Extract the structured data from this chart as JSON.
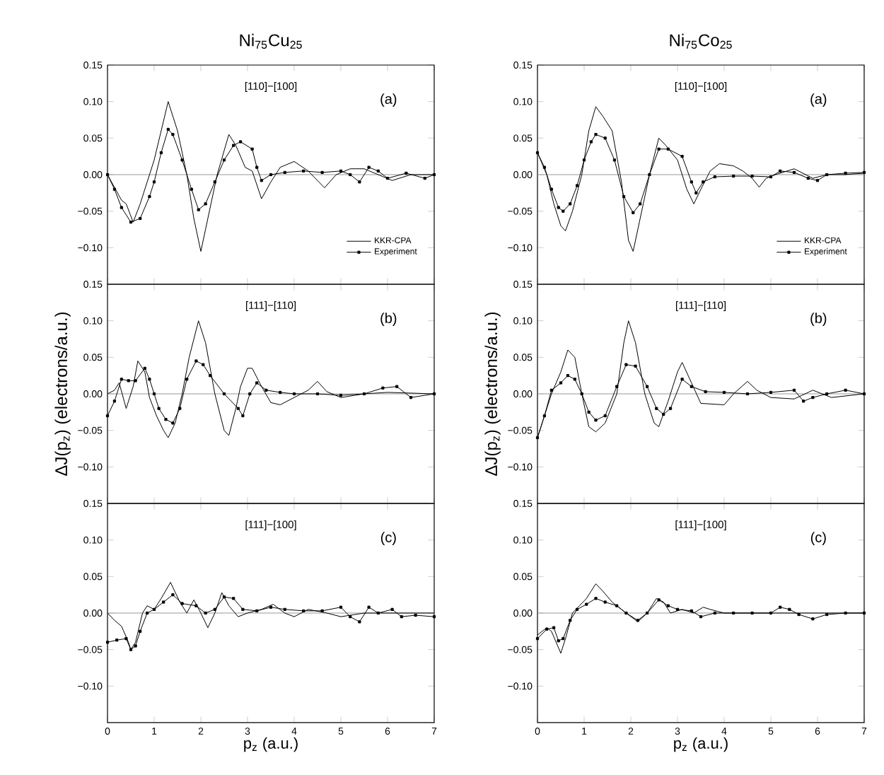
{
  "chart_data": [
    {
      "type": "line",
      "title": "Ni$_{75}$Cu$_{25}$",
      "annotations": [
        "[110]−[100]",
        "(a)"
      ],
      "xlim": [
        0,
        7
      ],
      "xticks": [
        0,
        1,
        2,
        3,
        4,
        5,
        6,
        7
      ],
      "ylim": [
        -0.15,
        0.15
      ],
      "yticks": [
        {
          "value": -0.1,
          "label": "−0.10"
        },
        {
          "value": -0.05,
          "label": "−0.05"
        },
        {
          "value": 0,
          "label": "0.00"
        },
        {
          "value": 0.05,
          "label": "0.05"
        },
        {
          "value": 0.1,
          "label": "0.10"
        },
        {
          "value": 0.15,
          "label": "0.15"
        }
      ],
      "tick_labels": "y",
      "legend": "bottom right",
      "line_style": "solid",
      "ref_lines": [
        {
          "axis": "y",
          "value": 0,
          "color": "#999999"
        }
      ],
      "series": [
        {
          "name": "KKR-CPA",
          "color": "#000000",
          "marker": "none",
          "x": [
            0,
            0.3,
            0.4,
            0.55,
            0.7,
            0.9,
            1.0,
            1.15,
            1.3,
            1.5,
            1.7,
            1.85,
            2.0,
            2.15,
            2.35,
            2.6,
            2.75,
            2.95,
            3.1,
            3.3,
            3.5,
            3.7,
            4.0,
            4.3,
            4.65,
            4.9,
            5.2,
            5.5,
            5.8,
            6.1,
            6.5,
            7.0
          ],
          "values": [
            0,
            -0.035,
            -0.04,
            -0.065,
            -0.04,
            0,
            0.02,
            0.06,
            0.1,
            0.06,
            0,
            -0.06,
            -0.105,
            -0.06,
            0,
            0.055,
            0.04,
            0.01,
            0.005,
            -0.033,
            -0.01,
            0.01,
            0.018,
            0.005,
            -0.018,
            0,
            0.008,
            0.008,
            0,
            -0.008,
            0,
            0
          ]
        },
        {
          "name": "Experiment",
          "color": "#000000",
          "marker": "square",
          "x": [
            0,
            0.15,
            0.3,
            0.5,
            0.7,
            0.9,
            1.0,
            1.15,
            1.3,
            1.4,
            1.6,
            1.8,
            1.95,
            2.1,
            2.3,
            2.5,
            2.7,
            2.85,
            3.1,
            3.2,
            3.3,
            3.5,
            3.8,
            4.2,
            4.6,
            5.0,
            5.2,
            5.4,
            5.6,
            5.8,
            6.0,
            6.4,
            6.8,
            7.0
          ],
          "values": [
            0,
            -0.02,
            -0.045,
            -0.065,
            -0.06,
            -0.03,
            -0.01,
            0.03,
            0.062,
            0.055,
            0.02,
            -0.02,
            -0.048,
            -0.04,
            -0.01,
            0.02,
            0.04,
            0.045,
            0.035,
            0.01,
            -0.008,
            0,
            0.003,
            0.005,
            0.003,
            0.005,
            0,
            -0.01,
            0.01,
            0.005,
            -0.005,
            0.002,
            -0.005,
            0
          ]
        }
      ]
    },
    {
      "type": "line",
      "ylabel": "ΔJ(p$_{z}$) (electrons/a.u.)",
      "annotations": [
        "[111]−[110]",
        "(b)"
      ],
      "xlim": [
        0,
        7
      ],
      "xticks": [
        0,
        1,
        2,
        3,
        4,
        5,
        6,
        7
      ],
      "ylim": [
        -0.15,
        0.15
      ],
      "yticks": [
        {
          "value": -0.1,
          "label": "−0.10"
        },
        {
          "value": -0.05,
          "label": "−0.05"
        },
        {
          "value": 0,
          "label": "0.00"
        },
        {
          "value": 0.05,
          "label": "0.05"
        },
        {
          "value": 0.1,
          "label": "0.10"
        },
        {
          "value": 0.15,
          "label": "0.15"
        }
      ],
      "tick_labels": "y",
      "line_style": "solid",
      "ref_lines": [
        {
          "axis": "y",
          "value": 0,
          "color": "#999999"
        }
      ],
      "series": [
        {
          "color": "#000000",
          "marker": "none",
          "x": [
            0,
            0.15,
            0.25,
            0.4,
            0.55,
            0.65,
            0.8,
            0.9,
            1.05,
            1.2,
            1.3,
            1.45,
            1.6,
            1.75,
            1.95,
            2.1,
            2.3,
            2.5,
            2.6,
            2.75,
            2.85,
            3.0,
            3.1,
            3.3,
            3.5,
            3.7,
            4.0,
            4.3,
            4.5,
            4.7,
            5.0,
            5.5,
            6.0,
            7.0
          ],
          "values": [
            0,
            0.005,
            0.015,
            -0.02,
            0.01,
            0.045,
            0.03,
            -0.005,
            -0.03,
            -0.05,
            -0.06,
            -0.04,
            0,
            0.05,
            0.1,
            0.07,
            0,
            -0.05,
            -0.057,
            -0.02,
            0.01,
            0.035,
            0.035,
            0.01,
            -0.012,
            -0.015,
            -0.005,
            0.005,
            0.017,
            0.003,
            -0.005,
            0,
            0.002,
            0
          ]
        },
        {
          "color": "#000000",
          "marker": "square",
          "x": [
            0,
            0.15,
            0.3,
            0.45,
            0.6,
            0.8,
            0.9,
            1.0,
            1.1,
            1.25,
            1.4,
            1.55,
            1.7,
            1.9,
            2.05,
            2.2,
            2.5,
            2.8,
            2.9,
            3.05,
            3.2,
            3.4,
            3.7,
            4.0,
            4.5,
            5.0,
            5.5,
            5.9,
            6.2,
            6.5,
            7.0
          ],
          "values": [
            -0.03,
            -0.01,
            0.02,
            0.018,
            0.018,
            0.035,
            0.02,
            0,
            -0.02,
            -0.035,
            -0.04,
            -0.02,
            0.02,
            0.045,
            0.04,
            0.025,
            0,
            -0.02,
            -0.03,
            0,
            0.015,
            0.005,
            0.002,
            0,
            0,
            -0.002,
            0,
            0.008,
            0.01,
            -0.005,
            0
          ]
        }
      ]
    },
    {
      "type": "line",
      "xlabel": "p$_{z}$ (a.u.)",
      "annotations": [
        "[111]−[100]",
        "(c)"
      ],
      "xlim": [
        0,
        7
      ],
      "xticks": [
        0,
        1,
        2,
        3,
        4,
        5,
        6,
        7
      ],
      "ylim": [
        -0.15,
        0.15
      ],
      "yticks": [
        {
          "value": -0.1,
          "label": "−0.10"
        },
        {
          "value": -0.05,
          "label": "−0.05"
        },
        {
          "value": 0,
          "label": "0.00"
        },
        {
          "value": 0.05,
          "label": "0.05"
        },
        {
          "value": 0.1,
          "label": "0.10"
        },
        {
          "value": 0.15,
          "label": "0.15"
        }
      ],
      "line_style": "solid",
      "ref_lines": [
        {
          "axis": "y",
          "value": 0,
          "color": "#999999"
        }
      ],
      "series": [
        {
          "color": "#000000",
          "marker": "none",
          "x": [
            0,
            0.15,
            0.3,
            0.45,
            0.5,
            0.6,
            0.75,
            0.85,
            1.0,
            1.15,
            1.35,
            1.55,
            1.7,
            1.85,
            2.0,
            2.15,
            2.3,
            2.45,
            2.6,
            2.8,
            3.0,
            3.3,
            3.55,
            3.8,
            4.0,
            4.3,
            4.7,
            5.0,
            5.5,
            6.0,
            7.0
          ],
          "values": [
            0,
            -0.01,
            -0.018,
            -0.04,
            -0.05,
            -0.04,
            0,
            0.01,
            0.005,
            0.02,
            0.042,
            0.015,
            0,
            0.018,
            0,
            -0.02,
            0,
            0.028,
            0.01,
            -0.005,
            0,
            0.005,
            0.012,
            0,
            -0.005,
            0.005,
            0,
            -0.005,
            0,
            0,
            0
          ]
        },
        {
          "color": "#000000",
          "marker": "square",
          "x": [
            0,
            0.2,
            0.4,
            0.5,
            0.6,
            0.7,
            0.85,
            1.0,
            1.2,
            1.4,
            1.6,
            1.9,
            2.1,
            2.3,
            2.5,
            2.7,
            2.9,
            3.2,
            3.5,
            3.8,
            4.2,
            4.6,
            5.0,
            5.2,
            5.4,
            5.6,
            5.8,
            6.1,
            6.3,
            6.6,
            7.0
          ],
          "values": [
            -0.04,
            -0.037,
            -0.035,
            -0.05,
            -0.045,
            -0.025,
            0,
            0.005,
            0.015,
            0.025,
            0.013,
            0.01,
            0,
            0.005,
            0.022,
            0.02,
            0.005,
            0.003,
            0.008,
            0.005,
            0.003,
            0.003,
            0.008,
            -0.005,
            -0.012,
            0.008,
            0,
            0.005,
            -0.005,
            -0.003,
            -0.005
          ]
        }
      ]
    },
    {
      "type": "line",
      "title": "Ni$_{75}$Co$_{25}$",
      "annotations": [
        "[110]−[100]",
        "(a)"
      ],
      "xlim": [
        0,
        7
      ],
      "xticks": [
        0,
        1,
        2,
        3,
        4,
        5,
        6,
        7
      ],
      "ylim": [
        -0.15,
        0.15
      ],
      "yticks": [
        {
          "value": -0.1,
          "label": "−0.10"
        },
        {
          "value": -0.05,
          "label": "−0.05"
        },
        {
          "value": 0,
          "label": "0.00"
        },
        {
          "value": 0.05,
          "label": "0.05"
        },
        {
          "value": 0.1,
          "label": "0.10"
        },
        {
          "value": 0.15,
          "label": "0.15"
        }
      ],
      "tick_labels": "y",
      "legend": "bottom right",
      "line_style": "solid",
      "ref_lines": [
        {
          "axis": "y",
          "value": 0,
          "color": "#999999"
        }
      ],
      "series": [
        {
          "name": "KKR-CPA",
          "color": "#000000",
          "marker": "none",
          "x": [
            0,
            0.2,
            0.35,
            0.5,
            0.6,
            0.75,
            0.95,
            1.1,
            1.25,
            1.4,
            1.6,
            1.8,
            1.95,
            2.05,
            2.2,
            2.4,
            2.6,
            2.75,
            3.0,
            3.2,
            3.35,
            3.5,
            3.7,
            3.9,
            4.2,
            4.4,
            4.6,
            4.75,
            4.9,
            5.1,
            5.5,
            5.9,
            6.2,
            6.6,
            7.0
          ],
          "values": [
            0.03,
            0,
            -0.04,
            -0.07,
            -0.077,
            -0.05,
            0,
            0.06,
            0.093,
            0.08,
            0.06,
            -0.01,
            -0.09,
            -0.105,
            -0.06,
            0,
            0.05,
            0.04,
            0.02,
            -0.02,
            -0.04,
            -0.02,
            0.005,
            0.015,
            0.012,
            0.005,
            -0.005,
            -0.017,
            -0.005,
            0,
            0.008,
            -0.005,
            0,
            0,
            0.002
          ]
        },
        {
          "name": "Experiment",
          "color": "#000000",
          "marker": "square",
          "x": [
            0,
            0.15,
            0.3,
            0.45,
            0.55,
            0.7,
            0.85,
            1.0,
            1.15,
            1.25,
            1.45,
            1.65,
            1.85,
            2.05,
            2.2,
            2.4,
            2.6,
            2.8,
            3.1,
            3.3,
            3.4,
            3.55,
            3.8,
            4.2,
            4.6,
            5.0,
            5.2,
            5.5,
            5.8,
            6.0,
            6.2,
            6.6,
            7.0
          ],
          "values": [
            0.03,
            0.01,
            -0.02,
            -0.045,
            -0.05,
            -0.04,
            -0.015,
            0.02,
            0.045,
            0.055,
            0.05,
            0.02,
            -0.03,
            -0.052,
            -0.04,
            0,
            0.035,
            0.035,
            0.025,
            -0.01,
            -0.025,
            -0.01,
            -0.003,
            -0.002,
            -0.002,
            -0.003,
            0.005,
            0.003,
            -0.005,
            -0.008,
            0,
            0.002,
            0.003
          ]
        }
      ]
    },
    {
      "type": "line",
      "ylabel": "ΔJ(p$_{z}$) (electrons/a.u.)",
      "annotations": [
        "[111]−[110]",
        "(b)"
      ],
      "xlim": [
        0,
        7
      ],
      "xticks": [
        0,
        1,
        2,
        3,
        4,
        5,
        6,
        7
      ],
      "ylim": [
        -0.15,
        0.15
      ],
      "yticks": [
        {
          "value": -0.1,
          "label": "−0.10"
        },
        {
          "value": -0.05,
          "label": "−0.05"
        },
        {
          "value": 0,
          "label": "0.00"
        },
        {
          "value": 0.05,
          "label": "0.05"
        },
        {
          "value": 0.1,
          "label": "0.10"
        },
        {
          "value": 0.15,
          "label": "0.15"
        }
      ],
      "tick_labels": "y",
      "line_style": "solid",
      "ref_lines": [
        {
          "axis": "y",
          "value": 0,
          "color": "#999999"
        }
      ],
      "series": [
        {
          "color": "#000000",
          "marker": "none",
          "x": [
            0,
            0.15,
            0.3,
            0.5,
            0.65,
            0.8,
            0.95,
            1.1,
            1.25,
            1.45,
            1.7,
            1.85,
            1.95,
            2.1,
            2.3,
            2.5,
            2.6,
            2.8,
            3.0,
            3.1,
            3.3,
            3.5,
            4.0,
            4.2,
            4.5,
            4.7,
            5.0,
            5.5,
            5.9,
            6.3,
            7.0
          ],
          "values": [
            -0.06,
            -0.03,
            0,
            0.03,
            0.06,
            0.05,
            0,
            -0.045,
            -0.052,
            -0.04,
            0,
            0.07,
            0.1,
            0.07,
            0,
            -0.04,
            -0.045,
            -0.01,
            0.03,
            0.043,
            0.015,
            -0.013,
            -0.015,
            0,
            0.017,
            0.005,
            -0.005,
            -0.007,
            0.005,
            -0.005,
            0
          ]
        },
        {
          "color": "#000000",
          "marker": "square",
          "x": [
            0,
            0.15,
            0.3,
            0.5,
            0.65,
            0.8,
            0.95,
            1.1,
            1.25,
            1.45,
            1.7,
            1.9,
            2.1,
            2.35,
            2.55,
            2.7,
            2.85,
            3.1,
            3.3,
            3.6,
            4.0,
            4.5,
            5.0,
            5.5,
            5.7,
            5.9,
            6.2,
            6.6,
            7.0
          ],
          "values": [
            -0.06,
            -0.03,
            0.005,
            0.015,
            0.025,
            0.02,
            0,
            -0.025,
            -0.036,
            -0.03,
            0.01,
            0.04,
            0.038,
            0.01,
            -0.02,
            -0.028,
            -0.02,
            0.02,
            0.01,
            0.003,
            0.002,
            0,
            0.002,
            0.005,
            -0.01,
            -0.005,
            0,
            0.005,
            0
          ]
        }
      ]
    },
    {
      "type": "line",
      "xlabel": "p$_{z}$ (a.u.)",
      "annotations": [
        "[111]−[100]",
        "(c)"
      ],
      "xlim": [
        0,
        7
      ],
      "xticks": [
        0,
        1,
        2,
        3,
        4,
        5,
        6,
        7
      ],
      "ylim": [
        -0.15,
        0.15
      ],
      "yticks": [
        {
          "value": -0.1,
          "label": "−0.10"
        },
        {
          "value": -0.05,
          "label": "−0.05"
        },
        {
          "value": 0,
          "label": "0.00"
        },
        {
          "value": 0.05,
          "label": "0.05"
        },
        {
          "value": 0.1,
          "label": "0.10"
        },
        {
          "value": 0.15,
          "label": "0.15"
        }
      ],
      "line_style": "solid",
      "ref_lines": [
        {
          "axis": "y",
          "value": 0,
          "color": "#999999"
        }
      ],
      "series": [
        {
          "color": "#000000",
          "marker": "none",
          "x": [
            0,
            0.2,
            0.3,
            0.5,
            0.6,
            0.75,
            0.9,
            1.05,
            1.25,
            1.4,
            1.6,
            1.9,
            2.15,
            2.35,
            2.55,
            2.7,
            2.85,
            3.1,
            3.35,
            3.55,
            3.7,
            4.0,
            5.0,
            6.0,
            7.0
          ],
          "values": [
            -0.03,
            -0.02,
            -0.025,
            -0.055,
            -0.035,
            0,
            0.01,
            0.02,
            0.04,
            0.03,
            0.015,
            0,
            -0.012,
            0,
            0.02,
            0.015,
            0,
            0.005,
            0,
            0.008,
            0.005,
            0,
            0,
            0,
            0
          ]
        },
        {
          "color": "#000000",
          "marker": "square",
          "x": [
            0,
            0.2,
            0.35,
            0.45,
            0.55,
            0.7,
            0.85,
            1.05,
            1.25,
            1.45,
            1.7,
            1.9,
            2.15,
            2.35,
            2.6,
            2.8,
            3.0,
            3.3,
            3.5,
            3.8,
            4.2,
            4.6,
            5.0,
            5.2,
            5.4,
            5.6,
            5.9,
            6.2,
            6.6,
            7.0
          ],
          "values": [
            -0.035,
            -0.022,
            -0.02,
            -0.038,
            -0.035,
            -0.01,
            0.005,
            0.012,
            0.02,
            0.015,
            0.01,
            0,
            -0.01,
            0,
            0.018,
            0.01,
            0.005,
            0.003,
            -0.005,
            0,
            0,
            0,
            0,
            0.008,
            0.005,
            -0.002,
            -0.008,
            -0.002,
            0,
            0
          ]
        }
      ]
    }
  ]
}
